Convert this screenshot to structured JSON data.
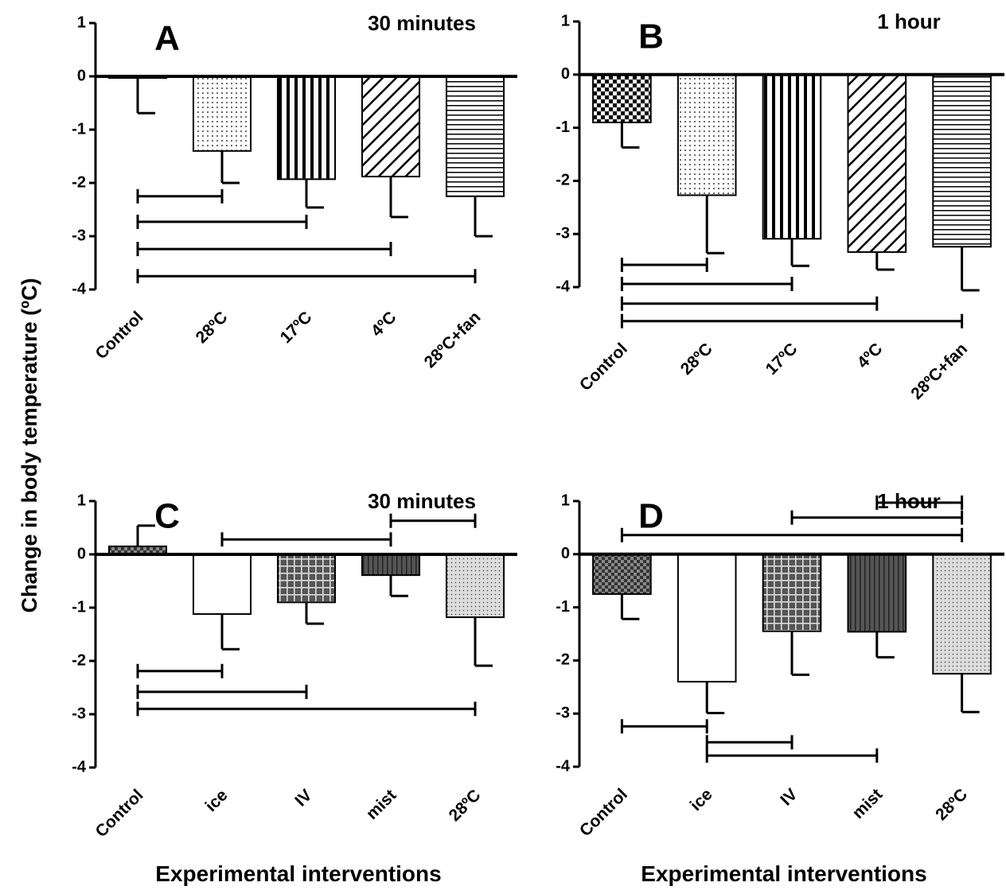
{
  "y_label": "Change in body temperature (ºC)",
  "chart_data": [
    {
      "type": "bar",
      "panel": "A",
      "subtitle": "30 minutes",
      "categories": [
        "Control",
        "28ºC",
        "17ºC",
        "4ºC",
        "28ºC+fan"
      ],
      "values": [
        -0.03,
        -1.4,
        -1.93,
        -1.88,
        -2.25
      ],
      "errors": [
        0.66,
        0.6,
        0.53,
        0.76,
        0.75
      ],
      "patterns": [
        "none",
        "dots",
        "vstripe",
        "diag",
        "hstripe"
      ],
      "ylim": [
        -4,
        1
      ],
      "yticks": [
        1,
        0,
        -1,
        -2,
        -3,
        -4
      ],
      "brackets": [
        {
          "from": "Control",
          "to": "28ºC",
          "y": -2.25
        },
        {
          "from": "Control",
          "to": "17ºC",
          "y": -2.73
        },
        {
          "from": "Control",
          "to": "4ºC",
          "y": -3.24
        },
        {
          "from": "Control",
          "to": "28ºC+fan",
          "y": -3.75
        }
      ]
    },
    {
      "type": "bar",
      "panel": "B",
      "subtitle": "1 hour",
      "categories": [
        "Control",
        "28ºC",
        "17ºC",
        "4ºC",
        "28ºC+fan"
      ],
      "values": [
        -0.9,
        -2.27,
        -3.09,
        -3.34,
        -3.24
      ],
      "errors": [
        0.47,
        1.09,
        0.51,
        0.33,
        0.82
      ],
      "patterns": [
        "checker",
        "dots",
        "vstripe",
        "diag",
        "hstripe"
      ],
      "ylim": [
        -4,
        1
      ],
      "yticks": [
        1,
        0,
        -1,
        -2,
        -3,
        -4
      ],
      "brackets": [
        {
          "from": "Control",
          "to": "28ºC",
          "y": -3.58
        },
        {
          "from": "Control",
          "to": "17ºC",
          "y": -3.94
        },
        {
          "from": "Control",
          "to": "4ºC",
          "y": -4.31
        },
        {
          "from": "Control",
          "to": "28ºC+fan",
          "y": -4.64
        }
      ]
    },
    {
      "type": "bar",
      "panel": "C",
      "subtitle": "30 minutes",
      "x_label": "Experimental interventions",
      "categories": [
        "Control",
        "ice",
        "IV",
        "mist",
        "28ºC"
      ],
      "values": [
        0.15,
        -1.12,
        -0.9,
        -0.39,
        -1.18
      ],
      "errors": [
        0.39,
        0.66,
        0.4,
        0.39,
        0.91
      ],
      "patterns": [
        "darkcheck",
        "none",
        "grid",
        "darkvstripe",
        "lightdots"
      ],
      "ylim": [
        -4,
        1
      ],
      "yticks": [
        1,
        0,
        -1,
        -2,
        -3,
        -4
      ],
      "brackets": [
        {
          "from": "ice",
          "to": "mist",
          "y": 0.28
        },
        {
          "from": "mist",
          "to": "28ºC",
          "y": 0.63
        },
        {
          "from": "Control",
          "to": "ice",
          "y": -2.19
        },
        {
          "from": "Control",
          "to": "IV",
          "y": -2.58
        },
        {
          "from": "Control",
          "to": "28ºC",
          "y": -2.9
        }
      ]
    },
    {
      "type": "bar",
      "panel": "D",
      "subtitle": "1 hour",
      "x_label": "Experimental interventions",
      "categories": [
        "Control",
        "ice",
        "IV",
        "mist",
        "28ºC"
      ],
      "values": [
        -0.75,
        -2.4,
        -1.45,
        -1.46,
        -2.25
      ],
      "errors": [
        0.47,
        0.59,
        0.82,
        0.48,
        0.72
      ],
      "patterns": [
        "darkcheck",
        "none",
        "grid",
        "darkvstripe",
        "lightdots"
      ],
      "ylim": [
        -4,
        1
      ],
      "yticks": [
        1,
        0,
        -1,
        -2,
        -3,
        -4
      ],
      "brackets": [
        {
          "from": "mist",
          "to": "28ºC",
          "y": 0.97
        },
        {
          "from": "IV",
          "to": "28ºC",
          "y": 0.69
        },
        {
          "from": "Control",
          "to": "28ºC",
          "y": 0.36
        },
        {
          "from": "Control",
          "to": "ice",
          "y": -3.24
        },
        {
          "from": "ice",
          "to": "IV",
          "y": -3.54
        },
        {
          "from": "ice",
          "to": "mist",
          "y": -3.79
        }
      ]
    }
  ]
}
